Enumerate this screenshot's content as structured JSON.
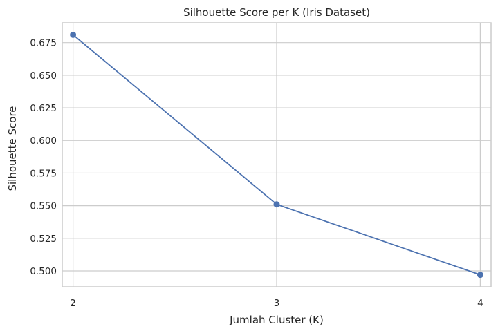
{
  "chart_data": {
    "type": "line",
    "title": "Silhouette Score per K (Iris Dataset)",
    "xlabel": "Jumlah Cluster (K)",
    "ylabel": "Silhouette Score",
    "x": [
      2,
      3,
      4
    ],
    "series": [
      {
        "values": [
          0.681,
          0.551,
          0.497
        ],
        "color": "#4c72b0",
        "marker": "circle"
      }
    ],
    "xticks": [
      "2",
      "3",
      "4"
    ],
    "yticks": [
      "0.500",
      "0.525",
      "0.550",
      "0.575",
      "0.600",
      "0.625",
      "0.650",
      "0.675"
    ],
    "xlim": [
      1.947,
      4.053
    ],
    "ylim": [
      0.4878,
      0.6902
    ],
    "grid": true,
    "style": {
      "grid_color": "#cccccc",
      "text_color": "#262626"
    }
  }
}
